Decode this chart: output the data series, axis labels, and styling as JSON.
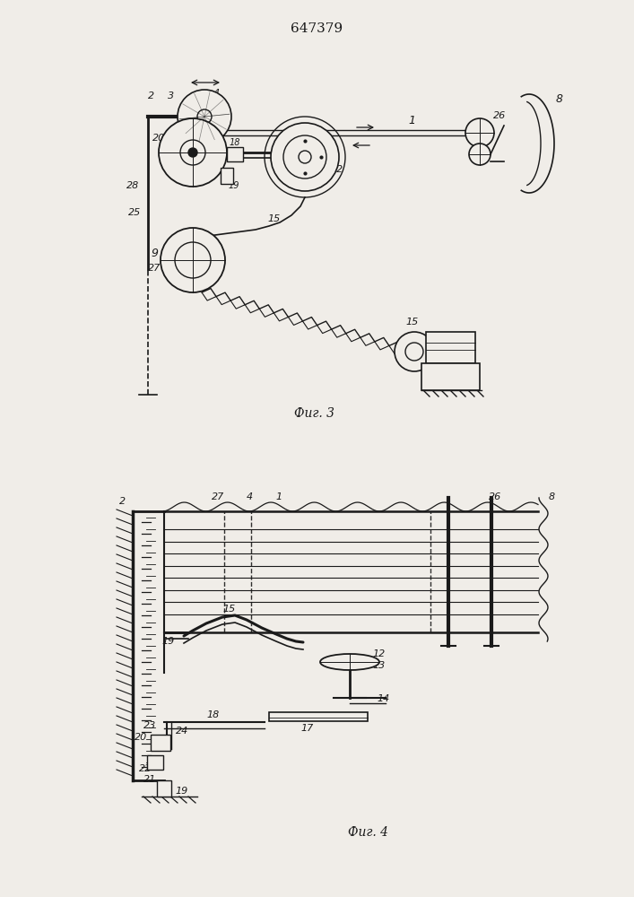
{
  "title": "647379",
  "fig3_caption": "Фиг. 3",
  "fig4_caption": "Фиг. 4",
  "bg_color": "#f0ede8",
  "line_color": "#1a1a1a",
  "line_width": 1.0
}
